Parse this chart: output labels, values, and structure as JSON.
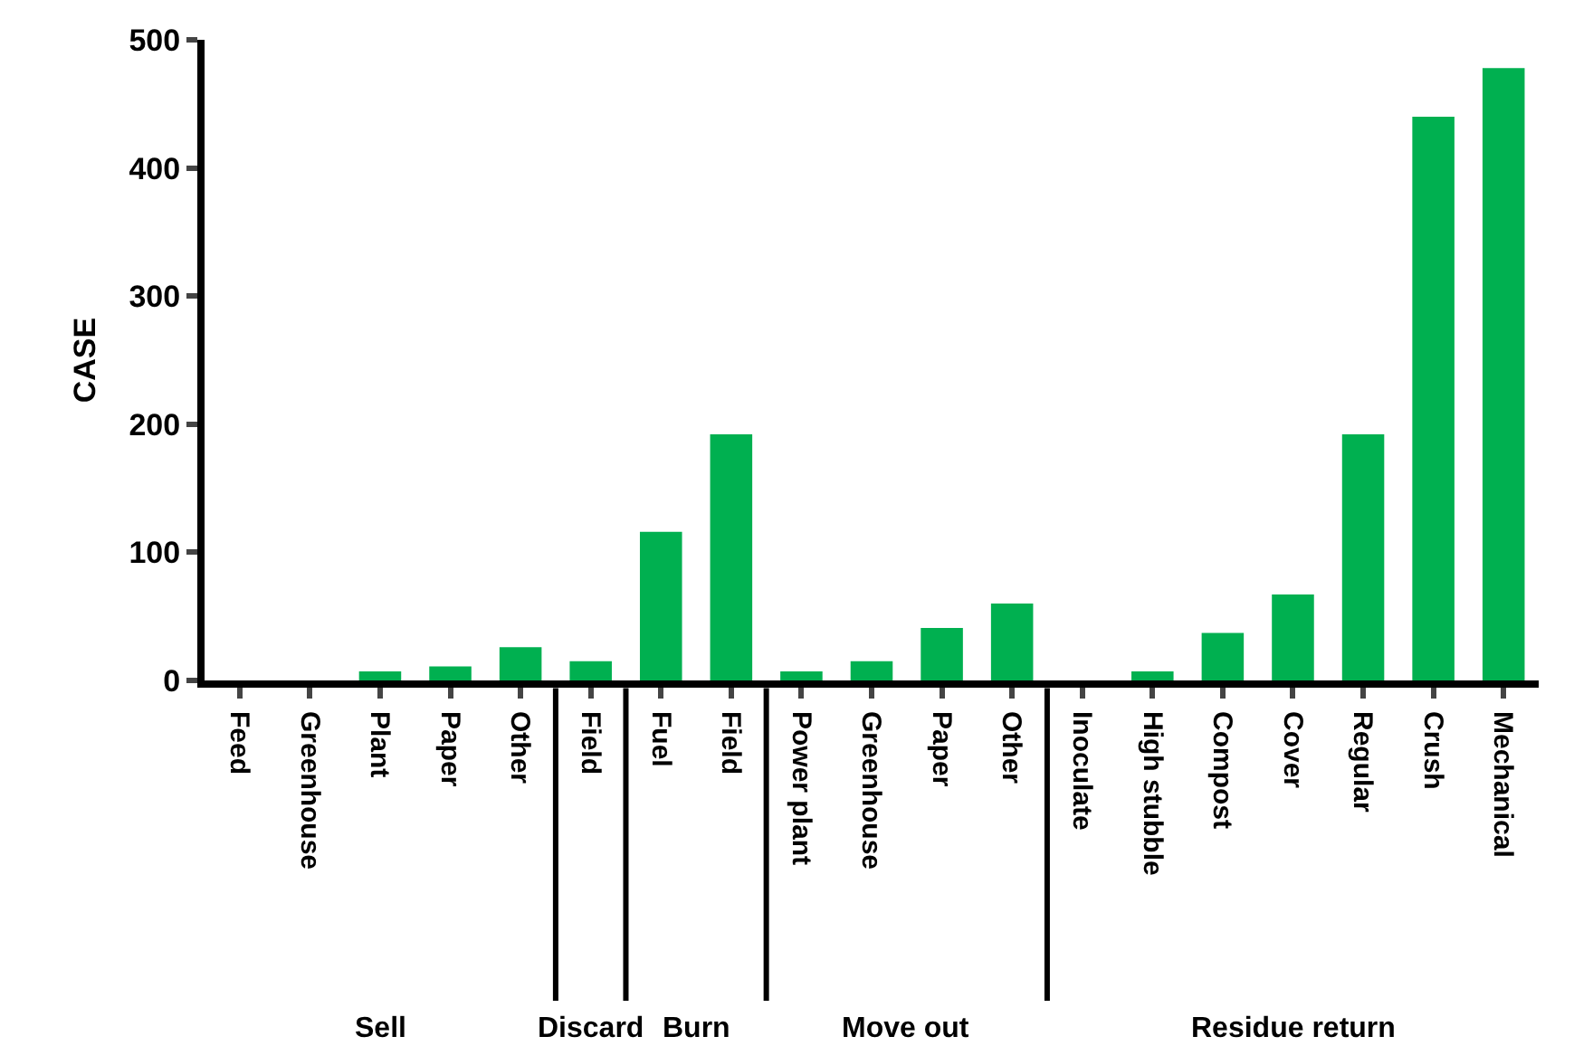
{
  "chart_data": {
    "type": "bar",
    "ylabel": "CASE",
    "categories": [
      "Feed",
      "Greenhouse",
      "Plant",
      "Paper",
      "Other",
      "Field",
      "Fuel",
      "Field",
      "Power plant",
      "Greenhouse",
      "Paper",
      "Other",
      "Inoculate",
      "High stubble",
      "Compost",
      "Cover",
      "Regular",
      "Crush",
      "Mechanical"
    ],
    "values": [
      0,
      0,
      7,
      11,
      26,
      15,
      116,
      192,
      7,
      15,
      41,
      60,
      0,
      7,
      37,
      67,
      192,
      440,
      478
    ],
    "color": "#00b050",
    "ylim": [
      0,
      500
    ],
    "yticks": [
      0,
      100,
      200,
      300,
      400,
      500
    ],
    "annotations": [
      "Sell",
      "Discard",
      "Burn",
      "Move out",
      "Residue return"
    ],
    "legend": false
  }
}
